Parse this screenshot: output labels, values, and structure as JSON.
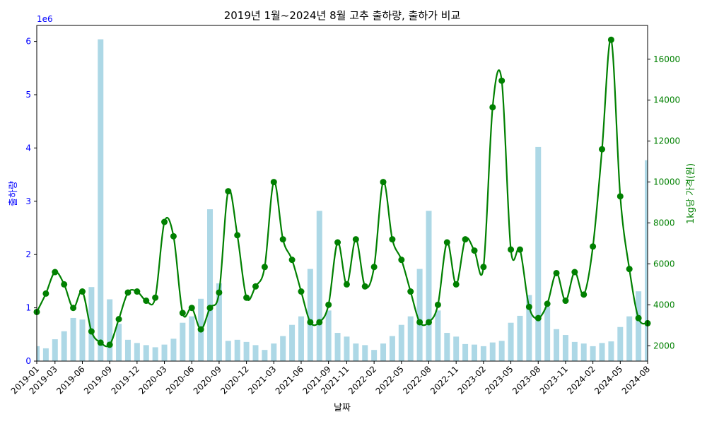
{
  "chart_data": {
    "type": "bar",
    "title": "2019년 1월~2024년 8월 고추 출하량, 출하가 비교",
    "xlabel": "날짜",
    "ylabel_left": "출하량",
    "ylabel_right": "1kg당 가격(원)",
    "left_axis_offset_label": "1e6",
    "left_color": "#0000ff",
    "right_color": "#008000",
    "bar_color": "#add8e6",
    "line_color": "#008000",
    "ylim_left": [
      0,
      6300000
    ],
    "ylim_right": [
      1250,
      17650
    ],
    "yticks_left": [
      0,
      1,
      2,
      3,
      4,
      5,
      6
    ],
    "yticks_right": [
      2000,
      4000,
      6000,
      8000,
      10000,
      12000,
      14000,
      16000
    ],
    "xticks": [
      "2019-01",
      "2019-03",
      "2019-06",
      "2019-09",
      "2019-12",
      "2020-03",
      "2020-06",
      "2020-09",
      "2020-12",
      "2021-03",
      "2021-06",
      "2021-09",
      "2021-11",
      "2022-02",
      "2022-05",
      "2022-08",
      "2022-11",
      "2023-02",
      "2023-05",
      "2023-08",
      "2023-11",
      "2024-02",
      "2024-05",
      "2024-08"
    ],
    "months": [
      "2019-01",
      "2019-02",
      "2019-03",
      "2019-04",
      "2019-05",
      "2019-06",
      "2019-07",
      "2019-08",
      "2019-09",
      "2019-10",
      "2019-11",
      "2019-12",
      "2020-01",
      "2020-02",
      "2020-03",
      "2020-04",
      "2020-05",
      "2020-06",
      "2020-07",
      "2020-08",
      "2020-09",
      "2020-10",
      "2020-11",
      "2020-12",
      "2021-01",
      "2021-02",
      "2021-03",
      "2021-04",
      "2021-05",
      "2021-06",
      "2021-07",
      "2021-08",
      "2021-09",
      "2021-10",
      "2021-11",
      "2021-12",
      "2022-01",
      "2022-02",
      "2022-03",
      "2022-04",
      "2022-05",
      "2022-06",
      "2022-07",
      "2022-08",
      "2022-09",
      "2022-10",
      "2022-11",
      "2022-12",
      "2023-01",
      "2023-02",
      "2023-03",
      "2023-04",
      "2023-05",
      "2023-06",
      "2023-07",
      "2023-08",
      "2023-09",
      "2023-10",
      "2023-11",
      "2023-12",
      "2024-01",
      "2024-02",
      "2024-03",
      "2024-04",
      "2024-05",
      "2024-06",
      "2024-07",
      "2024-08"
    ],
    "series": [
      {
        "axis": "left",
        "type": "bar",
        "values": [
          280000,
          240000,
          410000,
          560000,
          810000,
          780000,
          1390000,
          6040000,
          1160000,
          700000,
          400000,
          340000,
          300000,
          260000,
          310000,
          420000,
          720000,
          840000,
          1170000,
          2850000,
          1460000,
          380000,
          400000,
          360000,
          300000,
          210000,
          330000,
          470000,
          680000,
          840000,
          1730000,
          2820000,
          950000,
          530000,
          460000,
          330000,
          300000,
          210000,
          330000,
          470000,
          680000,
          840000,
          1730000,
          2820000,
          950000,
          530000,
          460000,
          320000,
          310000,
          280000,
          350000,
          380000,
          720000,
          850000,
          1240000,
          4020000,
          1020000,
          600000,
          490000,
          360000,
          330000,
          280000,
          340000,
          370000,
          640000,
          840000,
          1310000,
          3770000
        ]
      },
      {
        "axis": "right",
        "type": "line",
        "values": [
          3650,
          4550,
          5600,
          5000,
          3850,
          4650,
          2700,
          2150,
          2050,
          3300,
          4600,
          4650,
          4200,
          4350,
          8050,
          7350,
          3600,
          3850,
          2800,
          3850,
          4600,
          9550,
          7400,
          4350,
          4900,
          5850,
          10000,
          7200,
          6200,
          4650,
          3150,
          3150,
          4000,
          7050,
          5000,
          7200,
          4900,
          5850,
          10000,
          7200,
          6200,
          4650,
          3150,
          3150,
          4000,
          7050,
          5000,
          7200,
          6650,
          5850,
          13650,
          14950,
          6700,
          6700,
          3900,
          3350,
          4050,
          5550,
          4200,
          5600,
          4500,
          6850,
          11600,
          16950,
          9300,
          5750,
          3350,
          3100
        ]
      }
    ]
  }
}
